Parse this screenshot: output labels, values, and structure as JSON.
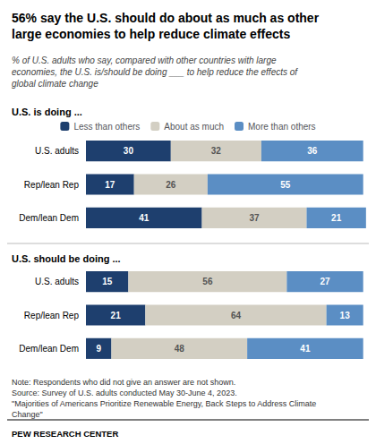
{
  "title": "56% say the U.S. should do about as much as other\nlarge economies to help reduce climate effects",
  "subtitle": "% of U.S. adults who say, compared with other countries with large\neconomies, the U.S. is/should be doing ___ to help reduce the effects of\nglobal climate change",
  "notes": [
    "Note: Respondents who did not give an answer are not shown.",
    "Source: Survey of U.S. adults conducted May 30-June 4, 2023.",
    "\"Majorities of Americans Prioritize Renewable Energy, Back Steps to Address Climate",
    "Change\""
  ],
  "footer": "PEW RESEARCH CENTER",
  "chart_data": [
    {
      "type": "bar",
      "title": "U.S. is doing ...",
      "orientation": "horizontal",
      "stacked": true,
      "data_labels": true,
      "tick_labels": "y",
      "grid": false,
      "legend": "top",
      "categories": [
        "U.S. adults",
        "Rep/lean Rep",
        "Dem/lean Dem"
      ],
      "xlim": [
        0,
        100
      ],
      "series": [
        {
          "name": "Less than others",
          "color": "#1e3f6e",
          "values": [
            30,
            17,
            41
          ]
        },
        {
          "name": "About as much",
          "color": "#d3cfc3",
          "values": [
            32,
            26,
            37
          ]
        },
        {
          "name": "More than others",
          "color": "#5b8ec4",
          "values": [
            36,
            55,
            21
          ]
        }
      ]
    },
    {
      "type": "bar",
      "title": "U.S. should be doing ...",
      "orientation": "horizontal",
      "stacked": true,
      "data_labels": true,
      "tick_labels": "y",
      "grid": false,
      "categories": [
        "U.S. adults",
        "Rep/lean Rep",
        "Dem/lean Dem"
      ],
      "xlim": [
        0,
        100
      ],
      "series": [
        {
          "name": "Less than others",
          "color": "#1e3f6e",
          "values": [
            15,
            21,
            9
          ]
        },
        {
          "name": "About as much",
          "color": "#d3cfc3",
          "values": [
            56,
            64,
            48
          ]
        },
        {
          "name": "More than others",
          "color": "#5b8ec4",
          "values": [
            27,
            13,
            41
          ]
        }
      ]
    }
  ]
}
